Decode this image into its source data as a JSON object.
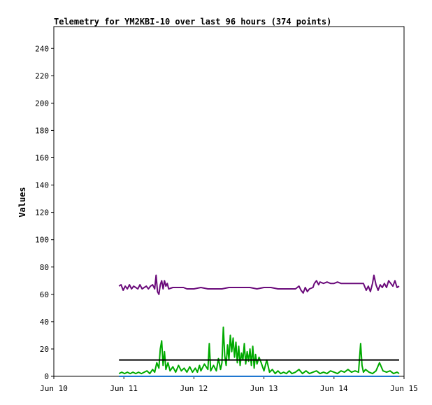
{
  "chart_data": {
    "type": "line",
    "title": "Telemetry for YM2KBI-10 over last 96 hours (374 points)",
    "ylabel": "Values",
    "xlabel": "",
    "ylim": [
      0,
      256
    ],
    "xlim": [
      0,
      5
    ],
    "yticks": [
      0,
      20,
      40,
      60,
      80,
      100,
      120,
      140,
      160,
      180,
      200,
      220,
      240
    ],
    "xticks": [
      {
        "value": 0,
        "label": "Jun 10"
      },
      {
        "value": 1,
        "label": "Jun 11"
      },
      {
        "value": 2,
        "label": "Jun 12"
      },
      {
        "value": 3,
        "label": "Jun 13"
      },
      {
        "value": 4,
        "label": "Jun 14"
      },
      {
        "value": 5,
        "label": "Jun 15"
      }
    ],
    "grid": false,
    "legend": "none",
    "series": [
      {
        "color": "#6a0a7a",
        "points": [
          [
            0.93,
            66
          ],
          [
            0.96,
            67
          ],
          [
            0.99,
            63
          ],
          [
            1.02,
            66
          ],
          [
            1.05,
            64
          ],
          [
            1.08,
            67
          ],
          [
            1.11,
            64
          ],
          [
            1.14,
            66
          ],
          [
            1.17,
            65
          ],
          [
            1.2,
            64
          ],
          [
            1.23,
            67
          ],
          [
            1.26,
            64
          ],
          [
            1.29,
            65
          ],
          [
            1.32,
            66
          ],
          [
            1.35,
            64
          ],
          [
            1.38,
            66
          ],
          [
            1.41,
            67
          ],
          [
            1.44,
            64
          ],
          [
            1.46,
            74
          ],
          [
            1.48,
            62
          ],
          [
            1.5,
            60
          ],
          [
            1.52,
            67
          ],
          [
            1.54,
            70
          ],
          [
            1.56,
            64
          ],
          [
            1.58,
            70
          ],
          [
            1.6,
            66
          ],
          [
            1.62,
            68
          ],
          [
            1.64,
            64
          ],
          [
            1.7,
            65
          ],
          [
            1.8,
            65
          ],
          [
            1.85,
            65
          ],
          [
            1.9,
            64
          ],
          [
            2.0,
            64
          ],
          [
            2.1,
            65
          ],
          [
            2.2,
            64
          ],
          [
            2.3,
            64
          ],
          [
            2.4,
            64
          ],
          [
            2.5,
            65
          ],
          [
            2.6,
            65
          ],
          [
            2.7,
            65
          ],
          [
            2.8,
            65
          ],
          [
            2.9,
            64
          ],
          [
            3.0,
            65
          ],
          [
            3.1,
            65
          ],
          [
            3.2,
            64
          ],
          [
            3.3,
            64
          ],
          [
            3.4,
            64
          ],
          [
            3.45,
            64
          ],
          [
            3.5,
            66
          ],
          [
            3.53,
            63
          ],
          [
            3.56,
            61
          ],
          [
            3.59,
            65
          ],
          [
            3.62,
            62
          ],
          [
            3.65,
            64
          ],
          [
            3.7,
            65
          ],
          [
            3.72,
            68
          ],
          [
            3.75,
            70
          ],
          [
            3.78,
            67
          ],
          [
            3.8,
            69
          ],
          [
            3.85,
            68
          ],
          [
            3.9,
            69
          ],
          [
            3.95,
            68
          ],
          [
            4.0,
            68
          ],
          [
            4.05,
            69
          ],
          [
            4.1,
            68
          ],
          [
            4.2,
            68
          ],
          [
            4.3,
            68
          ],
          [
            4.35,
            68
          ],
          [
            4.42,
            68
          ],
          [
            4.46,
            63
          ],
          [
            4.49,
            66
          ],
          [
            4.52,
            62
          ],
          [
            4.55,
            68
          ],
          [
            4.57,
            74
          ],
          [
            4.6,
            67
          ],
          [
            4.63,
            63
          ],
          [
            4.66,
            67
          ],
          [
            4.69,
            65
          ],
          [
            4.72,
            68
          ],
          [
            4.75,
            65
          ],
          [
            4.78,
            70
          ],
          [
            4.81,
            68
          ],
          [
            4.84,
            66
          ],
          [
            4.87,
            70
          ],
          [
            4.9,
            65
          ],
          [
            4.93,
            66
          ]
        ]
      },
      {
        "color": "#00aa00",
        "points": [
          [
            0.93,
            2
          ],
          [
            0.97,
            3
          ],
          [
            1.01,
            2
          ],
          [
            1.05,
            3
          ],
          [
            1.09,
            2
          ],
          [
            1.13,
            3
          ],
          [
            1.17,
            2
          ],
          [
            1.21,
            3
          ],
          [
            1.25,
            2
          ],
          [
            1.29,
            3
          ],
          [
            1.33,
            4
          ],
          [
            1.37,
            2
          ],
          [
            1.41,
            5
          ],
          [
            1.44,
            3
          ],
          [
            1.47,
            10
          ],
          [
            1.5,
            6
          ],
          [
            1.52,
            20
          ],
          [
            1.54,
            26
          ],
          [
            1.56,
            8
          ],
          [
            1.58,
            18
          ],
          [
            1.6,
            5
          ],
          [
            1.63,
            10
          ],
          [
            1.66,
            4
          ],
          [
            1.7,
            7
          ],
          [
            1.74,
            3
          ],
          [
            1.78,
            8
          ],
          [
            1.82,
            4
          ],
          [
            1.86,
            6
          ],
          [
            1.9,
            3
          ],
          [
            1.94,
            7
          ],
          [
            1.98,
            3
          ],
          [
            2.02,
            6
          ],
          [
            2.05,
            3
          ],
          [
            2.08,
            8
          ],
          [
            2.1,
            4
          ],
          [
            2.15,
            9
          ],
          [
            2.2,
            5
          ],
          [
            2.22,
            24
          ],
          [
            2.24,
            4
          ],
          [
            2.28,
            8
          ],
          [
            2.32,
            4
          ],
          [
            2.35,
            13
          ],
          [
            2.38,
            5
          ],
          [
            2.4,
            10
          ],
          [
            2.42,
            36
          ],
          [
            2.44,
            15
          ],
          [
            2.46,
            8
          ],
          [
            2.48,
            23
          ],
          [
            2.5,
            12
          ],
          [
            2.52,
            30
          ],
          [
            2.54,
            18
          ],
          [
            2.56,
            28
          ],
          [
            2.58,
            14
          ],
          [
            2.6,
            25
          ],
          [
            2.62,
            10
          ],
          [
            2.64,
            22
          ],
          [
            2.66,
            8
          ],
          [
            2.68,
            17
          ],
          [
            2.7,
            12
          ],
          [
            2.72,
            24
          ],
          [
            2.74,
            9
          ],
          [
            2.76,
            18
          ],
          [
            2.78,
            11
          ],
          [
            2.8,
            20
          ],
          [
            2.82,
            8
          ],
          [
            2.84,
            22
          ],
          [
            2.86,
            6
          ],
          [
            2.88,
            16
          ],
          [
            2.9,
            9
          ],
          [
            2.93,
            14
          ],
          [
            2.96,
            10
          ],
          [
            3.0,
            4
          ],
          [
            3.04,
            12
          ],
          [
            3.08,
            3
          ],
          [
            3.12,
            5
          ],
          [
            3.16,
            2
          ],
          [
            3.2,
            4
          ],
          [
            3.24,
            2
          ],
          [
            3.28,
            3
          ],
          [
            3.32,
            2
          ],
          [
            3.36,
            4
          ],
          [
            3.4,
            2
          ],
          [
            3.45,
            3
          ],
          [
            3.5,
            5
          ],
          [
            3.55,
            2
          ],
          [
            3.6,
            4
          ],
          [
            3.65,
            2
          ],
          [
            3.7,
            3
          ],
          [
            3.75,
            4
          ],
          [
            3.8,
            2
          ],
          [
            3.85,
            3
          ],
          [
            3.9,
            2
          ],
          [
            3.95,
            4
          ],
          [
            4.0,
            3
          ],
          [
            4.05,
            2
          ],
          [
            4.1,
            4
          ],
          [
            4.15,
            3
          ],
          [
            4.2,
            5
          ],
          [
            4.25,
            3
          ],
          [
            4.3,
            4
          ],
          [
            4.35,
            3
          ],
          [
            4.38,
            24
          ],
          [
            4.4,
            8
          ],
          [
            4.42,
            3
          ],
          [
            4.45,
            5
          ],
          [
            4.5,
            3
          ],
          [
            4.55,
            2
          ],
          [
            4.6,
            4
          ],
          [
            4.65,
            10
          ],
          [
            4.7,
            4
          ],
          [
            4.75,
            3
          ],
          [
            4.8,
            4
          ],
          [
            4.85,
            2
          ],
          [
            4.9,
            3
          ],
          [
            4.93,
            2
          ]
        ]
      },
      {
        "color": "#000000",
        "points": [
          [
            0.93,
            12
          ],
          [
            4.93,
            12
          ]
        ]
      },
      {
        "color": "#1f77d0",
        "points": [
          [
            0.93,
            0
          ],
          [
            4.93,
            0
          ]
        ]
      }
    ]
  }
}
